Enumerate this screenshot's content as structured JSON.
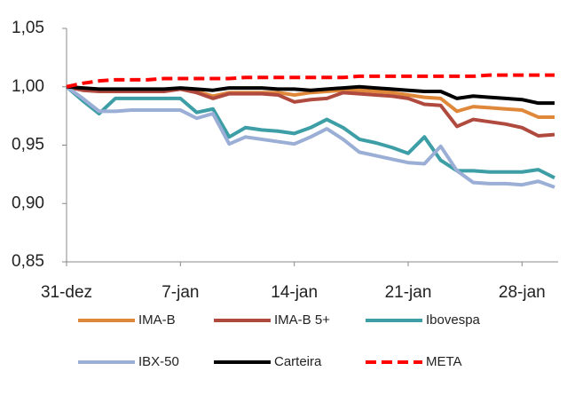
{
  "chart_data": {
    "type": "line",
    "categories": [
      "31-dez",
      null,
      null,
      null,
      null,
      null,
      null,
      "7-jan",
      null,
      null,
      null,
      null,
      null,
      null,
      "14-jan",
      null,
      null,
      null,
      null,
      null,
      null,
      "21-jan",
      null,
      null,
      null,
      null,
      null,
      null,
      "28-jan",
      null,
      null
    ],
    "ylim": [
      0.85,
      1.05
    ],
    "yticks": [
      {
        "value": 0.85,
        "label": "0,85"
      },
      {
        "value": 0.9,
        "label": "0,90"
      },
      {
        "value": 0.95,
        "label": "0,95"
      },
      {
        "value": 1.0,
        "label": "1,00"
      },
      {
        "value": 1.05,
        "label": "1,05"
      }
    ],
    "grid": false,
    "legend": "bottom",
    "series": [
      {
        "name": "IMA-B",
        "color": "#e0883a",
        "style": "solid",
        "values": [
          1,
          0.998,
          0.997,
          0.997,
          0.997,
          0.997,
          0.997,
          0.998,
          0.996,
          0.992,
          0.995,
          0.995,
          0.995,
          0.995,
          0.993,
          0.995,
          0.996,
          0.997,
          0.997,
          0.996,
          0.995,
          0.993,
          0.991,
          0.99,
          0.979,
          0.983,
          0.982,
          0.981,
          0.98,
          0.974,
          0.974
        ]
      },
      {
        "name": "IMA-B 5+",
        "color": "#b04a3f",
        "style": "solid",
        "values": [
          1,
          0.997,
          0.996,
          0.996,
          0.996,
          0.996,
          0.996,
          0.998,
          0.995,
          0.99,
          0.994,
          0.994,
          0.994,
          0.993,
          0.987,
          0.989,
          0.99,
          0.995,
          0.994,
          0.993,
          0.992,
          0.99,
          0.985,
          0.984,
          0.966,
          0.972,
          0.97,
          0.968,
          0.965,
          0.958,
          0.959
        ]
      },
      {
        "name": "Ibovespa",
        "color": "#3d9ea6",
        "style": "solid",
        "values": [
          1,
          0.988,
          0.977,
          0.99,
          0.99,
          0.99,
          0.99,
          0.99,
          0.978,
          0.981,
          0.957,
          0.965,
          0.963,
          0.962,
          0.96,
          0.965,
          0.972,
          0.965,
          0.955,
          0.952,
          0.948,
          0.943,
          0.957,
          0.937,
          0.928,
          0.928,
          0.927,
          0.927,
          0.927,
          0.929,
          0.922
        ]
      },
      {
        "name": "IBX-50",
        "color": "#9aaed6",
        "style": "solid",
        "values": [
          1,
          0.99,
          0.979,
          0.979,
          0.98,
          0.98,
          0.98,
          0.98,
          0.973,
          0.977,
          0.951,
          0.957,
          0.955,
          0.953,
          0.951,
          0.957,
          0.964,
          0.955,
          0.944,
          0.941,
          0.938,
          0.935,
          0.934,
          0.949,
          0.928,
          0.918,
          0.917,
          0.917,
          0.916,
          0.919,
          0.914
        ]
      },
      {
        "name": "Carteira",
        "color": "#000000",
        "style": "solid",
        "values": [
          1,
          0.999,
          0.998,
          0.998,
          0.998,
          0.998,
          0.998,
          0.999,
          0.998,
          0.997,
          0.999,
          0.999,
          0.999,
          0.998,
          0.998,
          0.997,
          0.998,
          0.999,
          1.0,
          0.999,
          0.998,
          0.997,
          0.996,
          0.996,
          0.99,
          0.992,
          0.991,
          0.99,
          0.989,
          0.986,
          0.986
        ]
      },
      {
        "name": "META",
        "color": "#ff0000",
        "style": "dashed",
        "values": [
          1,
          1.003,
          1.005,
          1.006,
          1.006,
          1.006,
          1.007,
          1.007,
          1.007,
          1.007,
          1.007,
          1.008,
          1.008,
          1.008,
          1.008,
          1.008,
          1.008,
          1.008,
          1.009,
          1.009,
          1.009,
          1.009,
          1.009,
          1.009,
          1.009,
          1.009,
          1.01,
          1.01,
          1.01,
          1.01,
          1.01
        ]
      }
    ]
  }
}
